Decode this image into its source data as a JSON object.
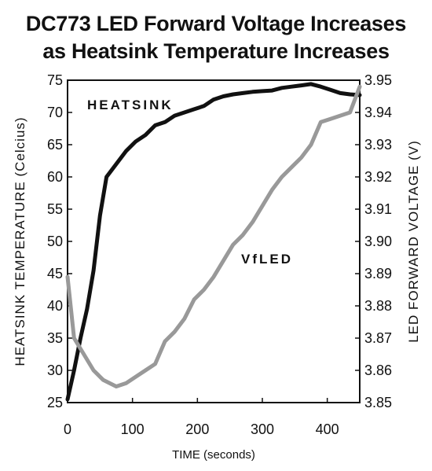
{
  "title_line1": "DC773 LED Forward Voltage Increases",
  "title_line2": "as Heatsink Temperature Increases",
  "chart_data": {
    "type": "line",
    "xlabel": "TIME (seconds)",
    "ylabel_left": "HEATSINK TEMPERATURE (Celcius)",
    "ylabel_right": "LED FORWARD VOLTAGE (V)",
    "xlim": [
      0,
      450
    ],
    "ylim_left": [
      25,
      75
    ],
    "ylim_right": [
      3.85,
      3.95
    ],
    "x_ticks": [
      0,
      100,
      200,
      300,
      400
    ],
    "y_ticks_left": [
      25,
      30,
      35,
      40,
      45,
      50,
      55,
      60,
      65,
      70,
      75
    ],
    "y_ticks_right": [
      "3.85",
      "3.86",
      "3.87",
      "3.88",
      "3.89",
      "3.90",
      "3.91",
      "3.92",
      "3.93",
      "3.94",
      "3.95"
    ],
    "grid": false,
    "series": [
      {
        "name": "HEATSINK",
        "axis": "left",
        "color": "#111111",
        "x": [
          0,
          10,
          20,
          30,
          40,
          50,
          60,
          75,
          90,
          105,
          120,
          135,
          150,
          165,
          180,
          195,
          210,
          225,
          240,
          255,
          270,
          285,
          300,
          315,
          330,
          345,
          360,
          375,
          390,
          405,
          420,
          435,
          450
        ],
        "y": [
          25.5,
          30,
          35,
          39.5,
          45.5,
          54,
          60,
          62,
          64,
          65.5,
          66.5,
          68,
          68.5,
          69.5,
          70,
          70.5,
          71,
          72,
          72.5,
          72.8,
          73,
          73.2,
          73.3,
          73.4,
          73.8,
          74,
          74.2,
          74.4,
          74,
          73.5,
          73,
          72.8,
          72.7
        ]
      },
      {
        "name": "VfLED",
        "axis": "right",
        "color": "#999999",
        "x": [
          0,
          10,
          25,
          40,
          55,
          75,
          90,
          105,
          120,
          135,
          150,
          165,
          180,
          195,
          210,
          225,
          240,
          255,
          270,
          285,
          300,
          315,
          330,
          345,
          360,
          375,
          390,
          405,
          420,
          435,
          450
        ],
        "y": [
          3.889,
          3.87,
          3.865,
          3.86,
          3.857,
          3.855,
          3.856,
          3.858,
          3.86,
          3.862,
          3.869,
          3.872,
          3.876,
          3.882,
          3.885,
          3.889,
          3.894,
          3.899,
          3.902,
          3.906,
          3.911,
          3.916,
          3.92,
          3.923,
          3.926,
          3.93,
          3.937,
          3.938,
          3.939,
          3.94,
          3.948
        ]
      }
    ],
    "annotations": [
      {
        "text": "HEATSINK",
        "series": "HEATSINK"
      },
      {
        "text": "VfLED",
        "series": "VfLED"
      }
    ]
  }
}
